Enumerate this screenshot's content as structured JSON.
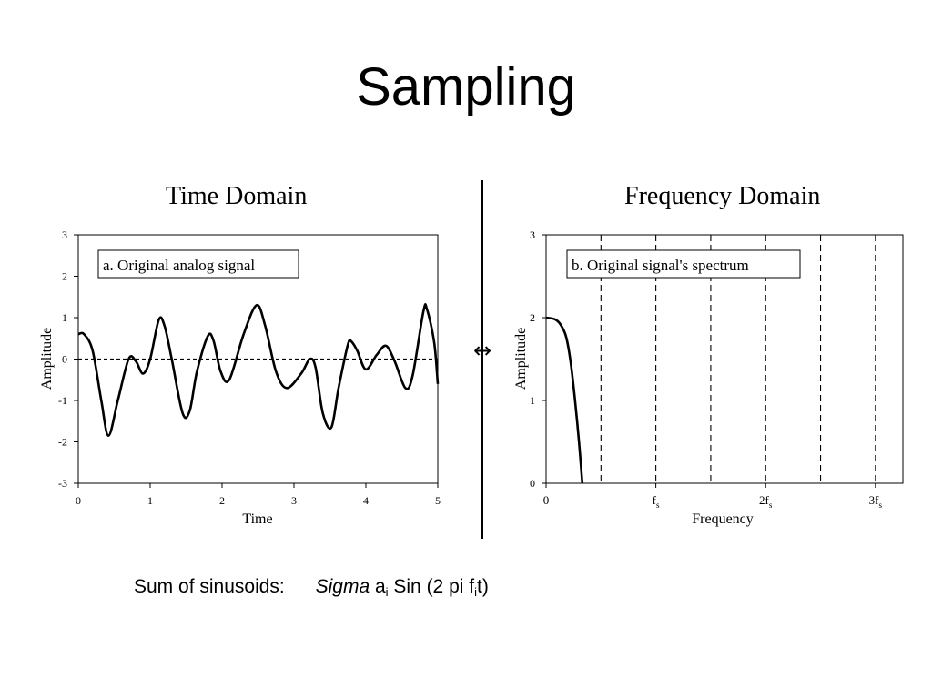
{
  "slide": {
    "title": "Sampling",
    "left_title": "Time Domain",
    "right_title": "Frequency Domain",
    "arrow": "↔",
    "caption": {
      "label": "Sum of sinusoids:",
      "sigma": "Sigma",
      "a": "a",
      "i1": "i",
      "sin": " Sin (2 pi f",
      "i2": "i",
      "t": "t)"
    }
  },
  "chart_data": [
    {
      "type": "line",
      "annotation": "a.  Original analog signal",
      "xlabel": "Time",
      "ylabel": "Amplitude",
      "xlim": [
        0,
        5
      ],
      "ylim": [
        -3,
        3
      ],
      "xticks": [
        0,
        1,
        2,
        3,
        4,
        5
      ],
      "yticks": [
        3,
        2,
        1,
        0,
        -1,
        -2,
        -3
      ],
      "zero_line": "dashed",
      "grid": false,
      "series": [
        {
          "x": [
            0,
            0.08,
            0.2,
            0.32,
            0.42,
            0.55,
            0.7,
            0.8,
            0.9,
            1.0,
            1.12,
            1.2,
            1.3,
            1.45,
            1.55,
            1.65,
            1.8,
            1.88,
            1.98,
            2.1,
            2.3,
            2.48,
            2.6,
            2.75,
            2.9,
            3.1,
            3.22,
            3.3,
            3.4,
            3.52,
            3.62,
            3.75,
            3.8,
            3.88,
            4.0,
            4.15,
            4.28,
            4.4,
            4.55,
            4.65,
            4.8,
            4.85,
            4.95,
            5.0
          ],
          "y": [
            0.6,
            0.6,
            0.2,
            -1.0,
            -1.85,
            -1.0,
            0.0,
            -0.05,
            -0.35,
            0.0,
            0.95,
            0.8,
            0.0,
            -1.3,
            -1.25,
            -0.3,
            0.55,
            0.45,
            -0.3,
            -0.5,
            0.6,
            1.3,
            0.8,
            -0.3,
            -0.7,
            -0.35,
            0.0,
            -0.2,
            -1.3,
            -1.65,
            -0.7,
            0.35,
            0.42,
            0.2,
            -0.25,
            0.1,
            0.32,
            -0.05,
            -0.7,
            -0.4,
            1.15,
            1.2,
            0.4,
            -0.6
          ]
        }
      ]
    },
    {
      "type": "line",
      "annotation": "b.  Original signal's spectrum",
      "xlabel": "Frequency",
      "ylabel": "Amplitude",
      "xlim": [
        0,
        3.25
      ],
      "ylim": [
        0,
        3
      ],
      "xtick_labels": [
        {
          "x": 0,
          "base": "0",
          "sub": ""
        },
        {
          "x": 1,
          "base": "f",
          "sub": "s"
        },
        {
          "x": 2,
          "base": "2f",
          "sub": "s"
        },
        {
          "x": 3,
          "base": "3f",
          "sub": "s"
        }
      ],
      "yticks": [
        3,
        2,
        1,
        0
      ],
      "vlines_dashed": [
        0.5,
        1,
        1.5,
        2,
        2.5,
        3
      ],
      "grid": false,
      "series": [
        {
          "x": [
            0,
            0.08,
            0.13,
            0.18,
            0.22,
            0.26,
            0.3,
            0.33
          ],
          "y": [
            2.0,
            1.98,
            1.92,
            1.78,
            1.5,
            1.05,
            0.5,
            0.0
          ]
        }
      ]
    }
  ]
}
